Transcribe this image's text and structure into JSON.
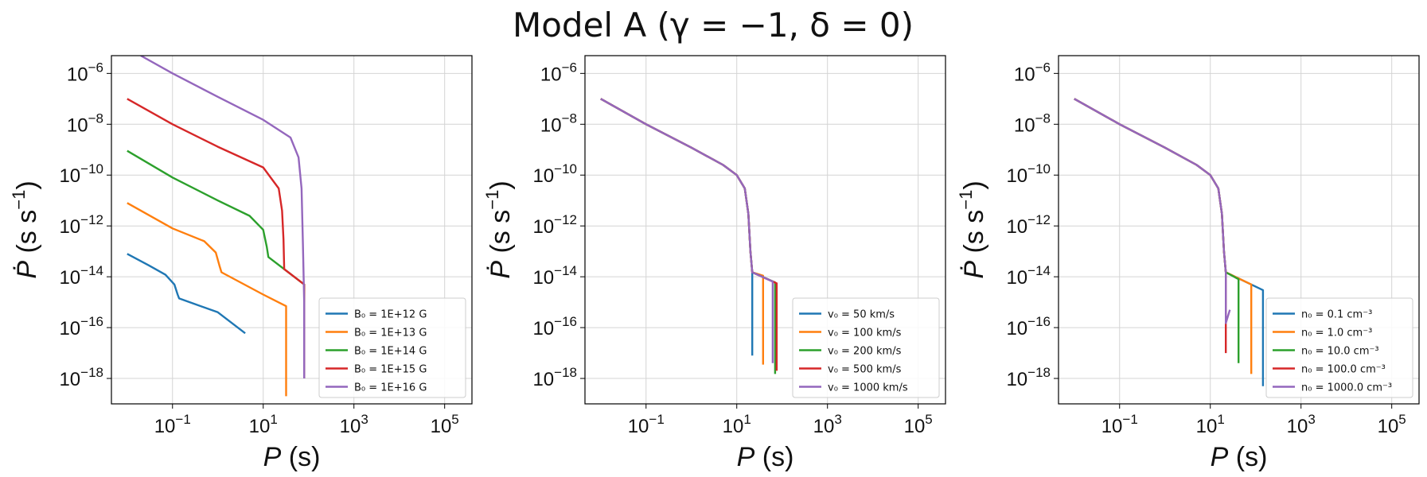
{
  "suptitle": "Model A (γ = −1, δ = 0)",
  "chart_data": [
    {
      "type": "line",
      "xscale": "log",
      "yscale": "log",
      "xlim": [
        0.0045,
        400000
      ],
      "ylim": [
        1e-19,
        5e-06
      ],
      "xticks": [
        {
          "exp": -1,
          "value": 0.1
        },
        {
          "exp": 1,
          "value": 10
        },
        {
          "exp": 3,
          "value": 1000
        },
        {
          "exp": 5,
          "value": 100000
        }
      ],
      "yticks": [
        {
          "exp": -18,
          "value": 1e-18
        },
        {
          "exp": -16,
          "value": 1e-16
        },
        {
          "exp": -14,
          "value": 1e-14
        },
        {
          "exp": -12,
          "value": 1e-12
        },
        {
          "exp": -10,
          "value": 1e-10
        },
        {
          "exp": -8,
          "value": 1e-08
        },
        {
          "exp": -6,
          "value": 1e-06
        }
      ],
      "xlabel_var": "P",
      "xlabel_unit": " (s)",
      "ylabel_var": "Ṗ",
      "ylabel_unit": " (s s",
      "grid": true,
      "legend_position": "lower-right",
      "series": [
        {
          "name": "B₀ = 1E+12 G",
          "color": "#1f77b4",
          "points": [
            [
              0.01,
              8e-14
            ],
            [
              0.03,
              2.8e-14
            ],
            [
              0.07,
              1.2e-14
            ],
            [
              0.11,
              5e-15
            ],
            [
              0.13,
              2e-15
            ],
            [
              0.14,
              1.4e-15
            ],
            [
              1,
              4e-16
            ],
            [
              4,
              6e-17
            ]
          ]
        },
        {
          "name": "B₀ = 1E+13 G",
          "color": "#ff7f0e",
          "points": [
            [
              0.01,
              8e-12
            ],
            [
              0.1,
              8e-13
            ],
            [
              0.5,
              2.5e-13
            ],
            [
              0.9,
              9e-14
            ],
            [
              1.1,
              2.5e-14
            ],
            [
              1.2,
              1.5e-14
            ],
            [
              10,
              2e-15
            ],
            [
              32,
              7e-16
            ],
            [
              32,
              2e-19
            ]
          ]
        },
        {
          "name": "B₀ = 1E+14 G",
          "color": "#2ca02c",
          "points": [
            [
              0.01,
              9e-10
            ],
            [
              0.1,
              8e-11
            ],
            [
              1,
              1e-11
            ],
            [
              5,
              2.5e-12
            ],
            [
              10,
              7e-13
            ],
            [
              12,
              1.5e-13
            ],
            [
              13,
              6e-14
            ],
            [
              80,
              5e-15
            ],
            [
              80,
              1e-18
            ]
          ]
        },
        {
          "name": "B₀ = 1E+15 G",
          "color": "#d62728",
          "points": [
            [
              0.01,
              1e-07
            ],
            [
              0.1,
              1e-08
            ],
            [
              1,
              1.3e-09
            ],
            [
              10,
              2e-10
            ],
            [
              22,
              3e-11
            ],
            [
              26,
              4e-12
            ],
            [
              28,
              3e-13
            ],
            [
              29,
              2e-14
            ],
            [
              80,
              5e-15
            ],
            [
              80,
              1e-18
            ]
          ]
        },
        {
          "name": "B₀ = 1E+16 G",
          "color": "#9467bd",
          "points": [
            [
              0.02,
              5e-06
            ],
            [
              0.1,
              1e-06
            ],
            [
              1,
              1.2e-07
            ],
            [
              10,
              1.5e-08
            ],
            [
              40,
              3e-09
            ],
            [
              60,
              5e-10
            ],
            [
              70,
              3e-11
            ],
            [
              75,
              2e-13
            ],
            [
              80,
              1e-15
            ],
            [
              80,
              1e-18
            ]
          ]
        }
      ]
    },
    {
      "type": "line",
      "xscale": "log",
      "yscale": "log",
      "xlim": [
        0.0045,
        400000
      ],
      "ylim": [
        1e-19,
        5e-06
      ],
      "xticks": [
        {
          "exp": -1,
          "value": 0.1
        },
        {
          "exp": 1,
          "value": 10
        },
        {
          "exp": 3,
          "value": 1000
        },
        {
          "exp": 5,
          "value": 100000
        }
      ],
      "yticks": [
        {
          "exp": -18,
          "value": 1e-18
        },
        {
          "exp": -16,
          "value": 1e-16
        },
        {
          "exp": -14,
          "value": 1e-14
        },
        {
          "exp": -12,
          "value": 1e-12
        },
        {
          "exp": -10,
          "value": 1e-10
        },
        {
          "exp": -8,
          "value": 1e-08
        },
        {
          "exp": -6,
          "value": 1e-06
        }
      ],
      "xlabel_var": "P",
      "xlabel_unit": " (s)",
      "ylabel_var": "Ṗ",
      "ylabel_unit": " (s s",
      "grid": true,
      "legend_position": "lower-right",
      "series": [
        {
          "name": "v₀ = 50 km/s",
          "color": "#1f77b4",
          "points": [
            [
              0.01,
              1e-07
            ],
            [
              0.1,
              1e-08
            ],
            [
              1,
              1.2e-09
            ],
            [
              5,
              2.5e-10
            ],
            [
              10,
              1e-10
            ],
            [
              15,
              3e-11
            ],
            [
              18,
              3e-12
            ],
            [
              20,
              1e-13
            ],
            [
              22,
              1.5e-14
            ],
            [
              22,
              8e-18
            ]
          ]
        },
        {
          "name": "v₀ = 100 km/s",
          "color": "#ff7f0e",
          "points": [
            [
              0.01,
              1e-07
            ],
            [
              0.1,
              1e-08
            ],
            [
              1,
              1.2e-09
            ],
            [
              5,
              2.5e-10
            ],
            [
              10,
              1e-10
            ],
            [
              15,
              3e-11
            ],
            [
              18,
              3e-12
            ],
            [
              20,
              1e-13
            ],
            [
              22,
              1.5e-14
            ],
            [
              38,
              1.1e-14
            ],
            [
              38,
              3.5e-18
            ]
          ]
        },
        {
          "name": "v₀ = 200 km/s",
          "color": "#2ca02c",
          "points": [
            [
              0.01,
              1e-07
            ],
            [
              0.1,
              1e-08
            ],
            [
              1,
              1.2e-09
            ],
            [
              5,
              2.5e-10
            ],
            [
              10,
              1e-10
            ],
            [
              15,
              3e-11
            ],
            [
              18,
              3e-12
            ],
            [
              20,
              1e-13
            ],
            [
              22,
              1.5e-14
            ],
            [
              70,
              6e-15
            ],
            [
              70,
              1.5e-18
            ]
          ]
        },
        {
          "name": "v₀ = 500 km/s",
          "color": "#d62728",
          "points": [
            [
              0.01,
              1e-07
            ],
            [
              0.1,
              1e-08
            ],
            [
              1,
              1.2e-09
            ],
            [
              5,
              2.5e-10
            ],
            [
              10,
              1e-10
            ],
            [
              15,
              3e-11
            ],
            [
              18,
              3e-12
            ],
            [
              20,
              1e-13
            ],
            [
              22,
              1.5e-14
            ],
            [
              76,
              5.5e-15
            ],
            [
              76,
              2e-18
            ]
          ]
        },
        {
          "name": "v₀ = 1000 km/s",
          "color": "#9467bd",
          "points": [
            [
              0.01,
              1e-07
            ],
            [
              0.1,
              1e-08
            ],
            [
              1,
              1.2e-09
            ],
            [
              5,
              2.5e-10
            ],
            [
              10,
              1e-10
            ],
            [
              15,
              3e-11
            ],
            [
              18,
              3e-12
            ],
            [
              20,
              1e-13
            ],
            [
              22,
              1.5e-14
            ],
            [
              62,
              6.5e-15
            ],
            [
              62,
              4e-18
            ]
          ]
        }
      ]
    },
    {
      "type": "line",
      "xscale": "log",
      "yscale": "log",
      "xlim": [
        0.0045,
        400000
      ],
      "ylim": [
        1e-19,
        5e-06
      ],
      "xticks": [
        {
          "exp": -1,
          "value": 0.1
        },
        {
          "exp": 1,
          "value": 10
        },
        {
          "exp": 3,
          "value": 1000
        },
        {
          "exp": 5,
          "value": 100000
        }
      ],
      "yticks": [
        {
          "exp": -18,
          "value": 1e-18
        },
        {
          "exp": -16,
          "value": 1e-16
        },
        {
          "exp": -14,
          "value": 1e-14
        },
        {
          "exp": -12,
          "value": 1e-12
        },
        {
          "exp": -10,
          "value": 1e-10
        },
        {
          "exp": -8,
          "value": 1e-08
        },
        {
          "exp": -6,
          "value": 1e-06
        }
      ],
      "xlabel_var": "P",
      "xlabel_unit": " (s)",
      "ylabel_var": "Ṗ",
      "ylabel_unit": " (s s",
      "grid": true,
      "legend_position": "lower-right",
      "series": [
        {
          "name": "n₀ = 0.1 cm⁻³",
          "color": "#1f77b4",
          "points": [
            [
              0.01,
              1e-07
            ],
            [
              0.1,
              1e-08
            ],
            [
              1,
              1.2e-09
            ],
            [
              5,
              2.5e-10
            ],
            [
              10,
              1e-10
            ],
            [
              15,
              3e-11
            ],
            [
              18,
              3e-12
            ],
            [
              20,
              1e-13
            ],
            [
              22,
              1.5e-14
            ],
            [
              145,
              3e-15
            ],
            [
              145,
              5e-19
            ]
          ]
        },
        {
          "name": "n₀ = 1.0 cm⁻³",
          "color": "#ff7f0e",
          "points": [
            [
              0.01,
              1e-07
            ],
            [
              0.1,
              1e-08
            ],
            [
              1,
              1.2e-09
            ],
            [
              5,
              2.5e-10
            ],
            [
              10,
              1e-10
            ],
            [
              15,
              3e-11
            ],
            [
              18,
              3e-12
            ],
            [
              20,
              1e-13
            ],
            [
              22,
              1.5e-14
            ],
            [
              80,
              5e-15
            ],
            [
              80,
              1.5e-18
            ]
          ]
        },
        {
          "name": "n₀ = 10.0 cm⁻³",
          "color": "#2ca02c",
          "points": [
            [
              0.01,
              1e-07
            ],
            [
              0.1,
              1e-08
            ],
            [
              1,
              1.2e-09
            ],
            [
              5,
              2.5e-10
            ],
            [
              10,
              1e-10
            ],
            [
              15,
              3e-11
            ],
            [
              18,
              3e-12
            ],
            [
              20,
              1e-13
            ],
            [
              22,
              1.5e-14
            ],
            [
              42,
              8e-15
            ],
            [
              42,
              4e-18
            ]
          ]
        },
        {
          "name": "n₀ = 100.0 cm⁻³",
          "color": "#d62728",
          "points": [
            [
              0.01,
              1e-07
            ],
            [
              0.1,
              1e-08
            ],
            [
              1,
              1.2e-09
            ],
            [
              5,
              2.5e-10
            ],
            [
              10,
              1e-10
            ],
            [
              15,
              3e-11
            ],
            [
              18,
              3e-12
            ],
            [
              20,
              1e-13
            ],
            [
              22,
              1.5e-14
            ],
            [
              22,
              1e-17
            ]
          ]
        },
        {
          "name": "n₀ = 1000.0 cm⁻³",
          "color": "#9467bd",
          "points": [
            [
              0.01,
              1e-07
            ],
            [
              0.1,
              1e-08
            ],
            [
              1,
              1.2e-09
            ],
            [
              5,
              2.5e-10
            ],
            [
              10,
              1e-10
            ],
            [
              15,
              3e-11
            ],
            [
              18,
              3e-12
            ],
            [
              20,
              1e-13
            ],
            [
              22,
              1.5e-14
            ],
            [
              22,
              1.5e-16
            ],
            [
              27,
              5e-16
            ]
          ]
        }
      ]
    }
  ]
}
